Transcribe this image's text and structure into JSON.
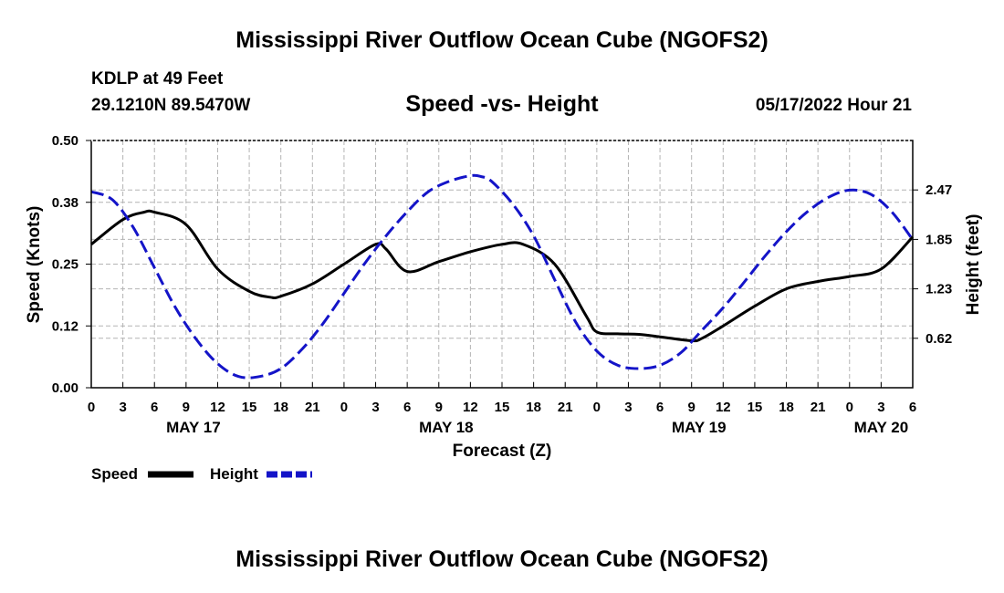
{
  "header": {
    "title": "Mississippi River Outflow Ocean Cube (NGOFS2)",
    "station": "KDLP at 49 Feet",
    "coordinates": "29.1210N  89.5470W",
    "subtitle": "Speed -vs- Height",
    "datetime": "05/17/2022 Hour 21"
  },
  "footer": {
    "title": "Mississippi River Outflow Ocean Cube (NGOFS2)"
  },
  "colors": {
    "speed": "#000000",
    "height": "#1414c8",
    "grid": "#b4b4b4"
  },
  "chart_data": {
    "type": "line",
    "title": "Speed -vs- Height",
    "xlabel": "Forecast (Z)",
    "ylabel": "Speed (Knots)",
    "y2label": "Height (feet)",
    "x_unit": "hours since 2022-05-17 00Z",
    "xlim": [
      0,
      78
    ],
    "ylim": [
      0,
      0.5
    ],
    "y2lim": [
      0,
      3.09
    ],
    "x_tick_labels": [
      "0",
      "3",
      "6",
      "9",
      "12",
      "15",
      "18",
      "21",
      "0",
      "3",
      "6",
      "9",
      "12",
      "15",
      "18",
      "21",
      "0",
      "3",
      "6",
      "9",
      "12",
      "15",
      "18",
      "21",
      "0",
      "3",
      "6"
    ],
    "date_labels": [
      {
        "x": 9.7,
        "label": "MAY 17"
      },
      {
        "x": 33.7,
        "label": "MAY 18"
      },
      {
        "x": 57.7,
        "label": "MAY 19"
      },
      {
        "x": 75.0,
        "label": "MAY 20"
      }
    ],
    "y_ticks": [
      "0.00",
      "0.12",
      "0.25",
      "0.38",
      "0.50"
    ],
    "y_tick_values": [
      0,
      0.125,
      0.25,
      0.375,
      0.5
    ],
    "y2_ticks": [
      "0.62",
      "1.23",
      "1.85",
      "2.47"
    ],
    "y2_tick_values": [
      0.618,
      1.236,
      1.854,
      2.472
    ],
    "legend": [
      {
        "name": "Speed",
        "style": "solid"
      },
      {
        "name": "Height",
        "style": "dashed"
      }
    ],
    "series": [
      {
        "name": "Speed",
        "axis": "left",
        "style": "solid",
        "x": [
          0,
          3,
          5,
          6,
          9,
          12,
          15,
          17,
          18,
          21,
          24,
          27,
          28,
          30,
          33,
          36,
          39,
          41,
          44,
          47,
          48,
          50,
          52,
          54,
          57,
          58,
          60,
          63,
          66,
          69,
          72,
          75,
          78
        ],
        "y": [
          0.29,
          0.34,
          0.355,
          0.355,
          0.33,
          0.24,
          0.195,
          0.183,
          0.185,
          0.21,
          0.25,
          0.29,
          0.28,
          0.235,
          0.255,
          0.275,
          0.29,
          0.29,
          0.25,
          0.145,
          0.113,
          0.109,
          0.108,
          0.103,
          0.095,
          0.1,
          0.125,
          0.165,
          0.2,
          0.215,
          0.225,
          0.24,
          0.305
        ]
      },
      {
        "name": "Height",
        "axis": "right",
        "style": "dashed",
        "x": [
          0,
          2,
          4,
          6,
          8,
          10,
          12,
          14,
          16,
          18,
          20,
          22,
          24,
          26,
          28,
          30,
          32,
          34,
          36,
          37,
          38,
          40,
          42,
          44,
          46,
          48,
          50,
          52,
          54,
          56,
          58,
          60,
          62,
          64,
          66,
          68,
          70,
          72,
          74,
          76,
          78
        ],
        "y": [
          2.45,
          2.35,
          2.0,
          1.5,
          1.0,
          0.6,
          0.3,
          0.14,
          0.14,
          0.24,
          0.48,
          0.8,
          1.18,
          1.56,
          1.9,
          2.2,
          2.45,
          2.58,
          2.65,
          2.64,
          2.58,
          2.3,
          1.9,
          1.35,
          0.82,
          0.46,
          0.28,
          0.24,
          0.28,
          0.44,
          0.72,
          1.0,
          1.32,
          1.65,
          1.95,
          2.2,
          2.38,
          2.47,
          2.42,
          2.2,
          1.85
        ]
      }
    ]
  }
}
